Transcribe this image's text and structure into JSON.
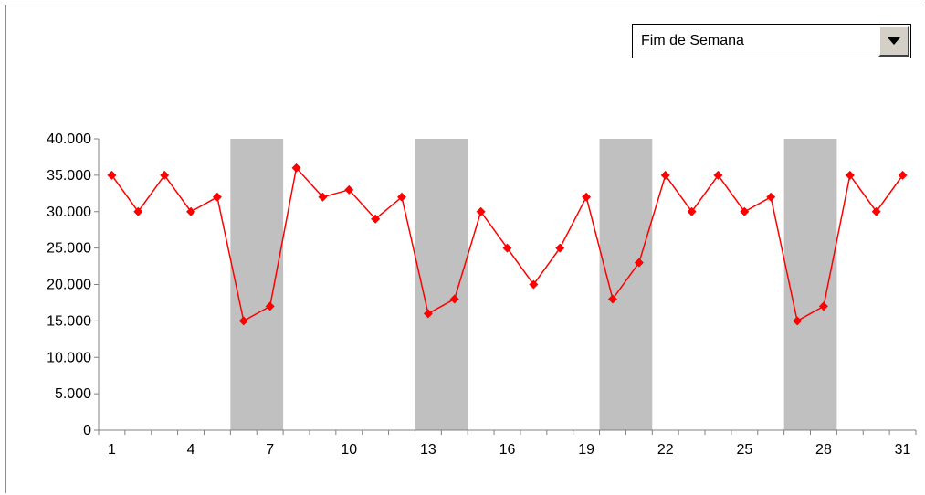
{
  "dropdown": {
    "selected": "Fim de Semana"
  },
  "chart_data": {
    "type": "line",
    "title": "",
    "xlabel": "",
    "ylabel": "",
    "x": [
      1,
      2,
      3,
      4,
      5,
      6,
      7,
      8,
      9,
      10,
      11,
      12,
      13,
      14,
      15,
      16,
      17,
      18,
      19,
      20,
      21,
      22,
      23,
      24,
      25,
      26,
      27,
      28,
      29,
      30,
      31
    ],
    "series": [
      {
        "values": [
          35000,
          30000,
          35000,
          30000,
          32000,
          15000,
          17000,
          36000,
          32000,
          33000,
          29000,
          32000,
          16000,
          18000,
          30000,
          25000,
          20000,
          25000,
          32000,
          18000,
          23000,
          35000,
          30000,
          35000,
          30000,
          32000,
          15000,
          17000,
          35000,
          30000,
          35000
        ]
      }
    ],
    "highlight_bands": [
      [
        6,
        7
      ],
      [
        13,
        14
      ],
      [
        20,
        21
      ],
      [
        27,
        28
      ]
    ],
    "ylim": [
      0,
      40000
    ],
    "yticks": [
      0,
      5000,
      10000,
      15000,
      20000,
      25000,
      30000,
      35000,
      40000
    ],
    "ytick_labels": [
      "0",
      "5.000",
      "10.000",
      "15.000",
      "20.000",
      "25.000",
      "30.000",
      "35.000",
      "40.000"
    ],
    "xtick_labels": [
      {
        "x": 1,
        "label": "1"
      },
      {
        "x": 4,
        "label": "4"
      },
      {
        "x": 7,
        "label": "7"
      },
      {
        "x": 10,
        "label": "10"
      },
      {
        "x": 13,
        "label": "13"
      },
      {
        "x": 16,
        "label": "16"
      },
      {
        "x": 19,
        "label": "19"
      },
      {
        "x": 22,
        "label": "22"
      },
      {
        "x": 25,
        "label": "25"
      },
      {
        "x": 28,
        "label": "28"
      },
      {
        "x": 31,
        "label": "31"
      }
    ],
    "colors": {
      "line": "#ff0000",
      "marker": "#ff0000",
      "band": "#c0c0c0",
      "axis": "#808080"
    },
    "grid": false,
    "legend": "none"
  }
}
